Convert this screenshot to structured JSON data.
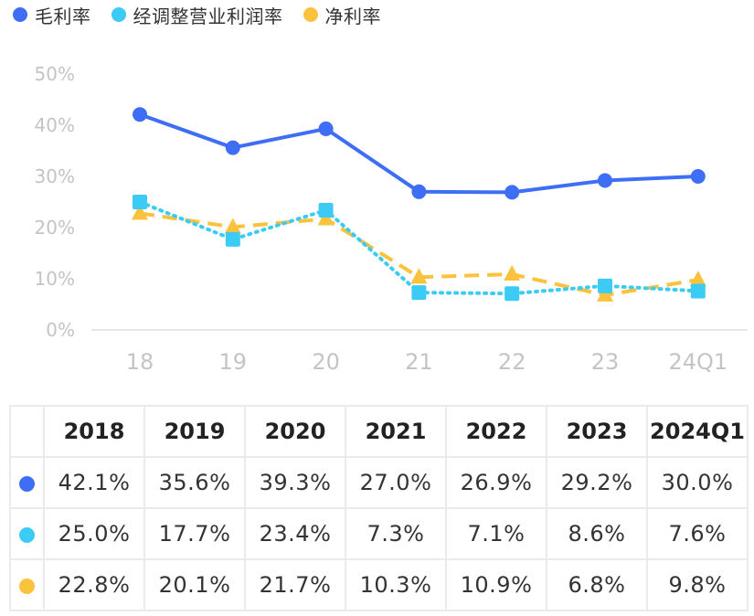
{
  "chart_data": {
    "type": "line",
    "categories": [
      "18",
      "19",
      "20",
      "21",
      "22",
      "23",
      "24Q1"
    ],
    "yticks": [
      "0%",
      "10%",
      "20%",
      "30%",
      "40%",
      "50%"
    ],
    "ylim": [
      0,
      50
    ],
    "grid": false,
    "legend_position": "top-left",
    "series": [
      {
        "name": "毛利率",
        "color": "#3d6ef5",
        "line_style": "solid",
        "marker": "circle",
        "values": [
          42.1,
          35.6,
          39.3,
          27.0,
          26.9,
          29.2,
          30.0
        ]
      },
      {
        "name": "经调整营业利润率",
        "color": "#3ccbf4",
        "line_style": "dotted",
        "marker": "square",
        "values": [
          25.0,
          17.7,
          23.4,
          7.3,
          7.1,
          8.6,
          7.6
        ]
      },
      {
        "name": "净利率",
        "color": "#fbc23d",
        "line_style": "dashed",
        "marker": "triangle",
        "values": [
          22.8,
          20.1,
          21.7,
          10.3,
          10.9,
          6.8,
          9.8
        ]
      }
    ]
  },
  "table": {
    "headers": [
      "2018",
      "2019",
      "2020",
      "2021",
      "2022",
      "2023",
      "2024Q1"
    ],
    "rows": [
      {
        "color": "#3d6ef5",
        "cells": [
          "42.1%",
          "35.6%",
          "39.3%",
          "27.0%",
          "26.9%",
          "29.2%",
          "30.0%"
        ]
      },
      {
        "color": "#3ccbf4",
        "cells": [
          "25.0%",
          "17.7%",
          "23.4%",
          "7.3%",
          "7.1%",
          "8.6%",
          "7.6%"
        ]
      },
      {
        "color": "#fbc23d",
        "cells": [
          "22.8%",
          "20.1%",
          "21.7%",
          "10.3%",
          "10.9%",
          "6.8%",
          "9.8%"
        ]
      }
    ]
  }
}
